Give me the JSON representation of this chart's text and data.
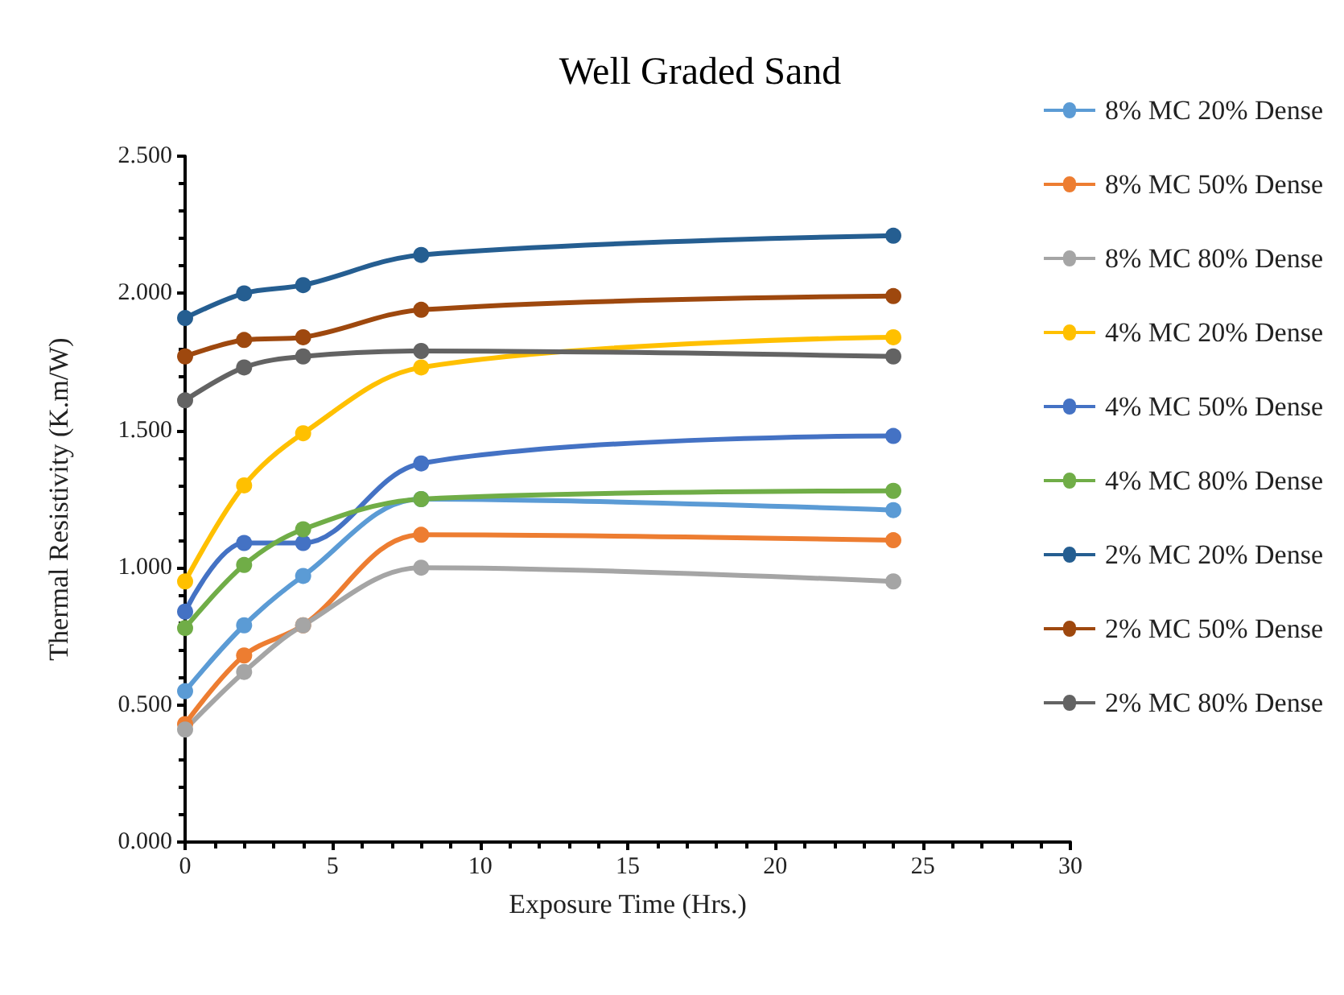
{
  "chart_data": {
    "type": "line",
    "title": "Well Graded Sand",
    "xlabel": "Exposure Time (Hrs.)",
    "ylabel": "Thermal Resistivity (K.m/W)",
    "x": [
      0,
      2,
      4,
      8,
      24
    ],
    "series": [
      {
        "name": "8% MC 20% Dense",
        "color": "#5b9bd5",
        "values": [
          0.55,
          0.79,
          0.97,
          1.25,
          1.21
        ]
      },
      {
        "name": "8% MC 50% Dense",
        "color": "#ed7d31",
        "values": [
          0.43,
          0.68,
          0.79,
          1.12,
          1.1
        ]
      },
      {
        "name": "8% MC 80% Dense",
        "color": "#a5a5a5",
        "values": [
          0.41,
          0.62,
          0.79,
          1.0,
          0.95
        ]
      },
      {
        "name": "4% MC 20% Dense",
        "color": "#ffc000",
        "values": [
          0.95,
          1.3,
          1.49,
          1.73,
          1.84
        ]
      },
      {
        "name": "4% MC 50% Dense",
        "color": "#4472c4",
        "values": [
          0.84,
          1.09,
          1.09,
          1.38,
          1.48
        ]
      },
      {
        "name": "4% MC 80% Dense",
        "color": "#70ad47",
        "values": [
          0.78,
          1.01,
          1.14,
          1.25,
          1.28
        ]
      },
      {
        "name": "2% MC 20% Dense",
        "color": "#255e91",
        "values": [
          1.91,
          2.0,
          2.03,
          2.14,
          2.21
        ]
      },
      {
        "name": "2% MC 50% Dense",
        "color": "#9e480e",
        "values": [
          1.77,
          1.83,
          1.84,
          1.94,
          1.99
        ]
      },
      {
        "name": "2% MC 80% Dense",
        "color": "#636363",
        "values": [
          1.61,
          1.73,
          1.77,
          1.79,
          1.77
        ]
      }
    ],
    "xlim": [
      0,
      30
    ],
    "xticks": [
      0,
      5,
      10,
      15,
      20,
      25,
      30
    ],
    "ylim": [
      0,
      2.5
    ],
    "yticks": [
      {
        "value": 0,
        "label": "0.000"
      },
      {
        "value": 0.5,
        "label": "0.500"
      },
      {
        "value": 1,
        "label": "1.000"
      },
      {
        "value": 1.5,
        "label": "1.500"
      },
      {
        "value": 2,
        "label": "2.000"
      },
      {
        "value": 2.5,
        "label": "2.500"
      }
    ],
    "grid": false,
    "legend": "right",
    "marker": "circle",
    "line_style": "solid"
  }
}
